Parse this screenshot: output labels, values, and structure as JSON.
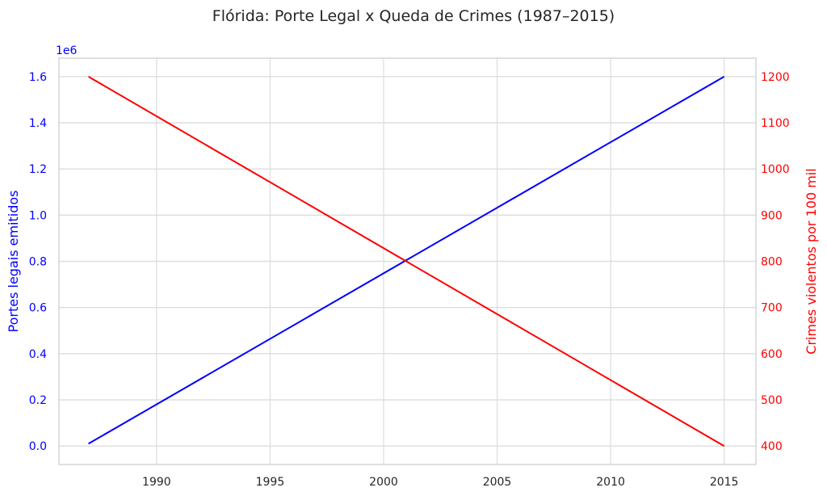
{
  "chart_data": {
    "type": "line",
    "title": "Flórida: Porte Legal x Queda de Crimes (1987–2015)",
    "x": [
      1987,
      2015
    ],
    "xlim": [
      1985.7,
      2016.4
    ],
    "xticks": [
      1990,
      1995,
      2000,
      2005,
      2010,
      2015
    ],
    "grid": true,
    "left_axis": {
      "label": "Portes legais emitidos",
      "scale_note": "1e6",
      "color": "#0000ff",
      "ylim": [
        -0.08,
        1.68
      ],
      "ticks": [
        "0.0",
        "0.2",
        "0.4",
        "0.6",
        "0.8",
        "1.0",
        "1.2",
        "1.4",
        "1.6"
      ],
      "tick_values": [
        0.0,
        0.2,
        0.4,
        0.6,
        0.8,
        1.0,
        1.2,
        1.4,
        1.6
      ]
    },
    "right_axis": {
      "label": "Crimes violentos por 100 mil",
      "color": "#ff0000",
      "ylim": [
        360,
        1240
      ],
      "ticks": [
        "400",
        "500",
        "600",
        "700",
        "800",
        "900",
        "1000",
        "1100",
        "1200"
      ],
      "tick_values": [
        400,
        500,
        600,
        700,
        800,
        900,
        1000,
        1100,
        1200
      ]
    },
    "series": [
      {
        "axis": "left",
        "color": "#0000ff",
        "x": [
          1987,
          2015
        ],
        "values": [
          0.01,
          1.6
        ]
      },
      {
        "axis": "right",
        "color": "#ff0000",
        "x": [
          1987,
          2015
        ],
        "values": [
          1200,
          400
        ]
      }
    ]
  }
}
